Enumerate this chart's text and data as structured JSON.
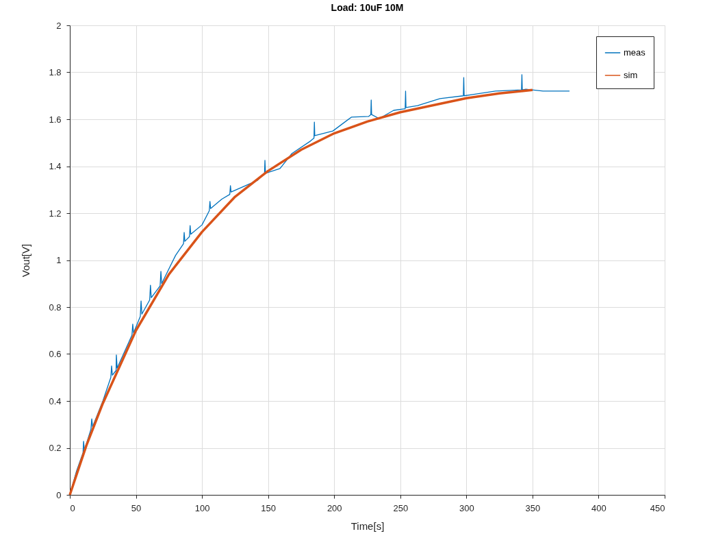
{
  "chart_data": {
    "type": "line",
    "title": "Load: 10uF 10M",
    "xlabel": "Time[s]",
    "ylabel": "Vout[V]",
    "xlim": [
      0,
      450
    ],
    "xticks": [
      0,
      50,
      100,
      150,
      200,
      250,
      300,
      350,
      400,
      450
    ],
    "ylim": [
      0,
      2
    ],
    "yticks": [
      0,
      0.2,
      0.4,
      0.6,
      0.8,
      1,
      1.2,
      1.4,
      1.6,
      1.8,
      2
    ],
    "grid": true,
    "legend": "top right",
    "line_style": "solid",
    "marker": "none",
    "series": [
      {
        "name": "meas",
        "color": "#0072bd",
        "x": [
          0,
          5,
          10,
          10.4,
          11,
          16,
          16.6,
          17.2,
          25,
          31,
          31.6,
          32.2,
          35,
          35.2,
          35.8,
          47,
          47.6,
          48.2,
          53.3,
          53.9,
          54.5,
          60.4,
          61,
          61.6,
          68.3,
          68.9,
          69.5,
          80,
          86,
          86.5,
          87,
          90.5,
          91,
          91.5,
          100,
          105.5,
          106,
          106.5,
          115,
          121,
          121.5,
          122,
          130,
          142,
          147.3,
          147.6,
          148,
          159,
          168,
          182,
          184.7,
          185,
          185.3,
          199,
          213,
          226,
          227.7,
          228,
          228.3,
          234,
          245,
          253.7,
          254,
          254.3,
          263,
          280,
          297.7,
          298,
          298.3,
          304,
          322,
          341.7,
          342,
          342.3,
          345,
          358,
          378
        ],
        "values": [
          0,
          0.1,
          0.18,
          0.228,
          0.19,
          0.28,
          0.324,
          0.29,
          0.4,
          0.5,
          0.549,
          0.51,
          0.53,
          0.596,
          0.54,
          0.68,
          0.727,
          0.69,
          0.76,
          0.826,
          0.77,
          0.83,
          0.893,
          0.84,
          0.89,
          0.952,
          0.9,
          1.02,
          1.07,
          1.118,
          1.08,
          1.1,
          1.147,
          1.11,
          1.15,
          1.21,
          1.25,
          1.22,
          1.26,
          1.28,
          1.317,
          1.29,
          1.31,
          1.34,
          1.37,
          1.425,
          1.37,
          1.39,
          1.454,
          1.507,
          1.52,
          1.588,
          1.53,
          1.55,
          1.609,
          1.612,
          1.62,
          1.682,
          1.62,
          1.603,
          1.638,
          1.645,
          1.72,
          1.65,
          1.658,
          1.688,
          1.7,
          1.778,
          1.7,
          1.705,
          1.72,
          1.725,
          1.79,
          1.725,
          1.728,
          1.72,
          1.72
        ]
      },
      {
        "name": "sim",
        "color": "#d95319",
        "x": [
          0,
          12.5,
          25,
          50,
          75,
          100,
          125,
          150,
          175,
          200,
          225,
          250,
          275,
          300,
          325,
          350
        ],
        "values": [
          0,
          0.21,
          0.39,
          0.7,
          0.94,
          1.12,
          1.27,
          1.38,
          1.47,
          1.54,
          1.59,
          1.63,
          1.66,
          1.69,
          1.71,
          1.725
        ]
      }
    ]
  }
}
